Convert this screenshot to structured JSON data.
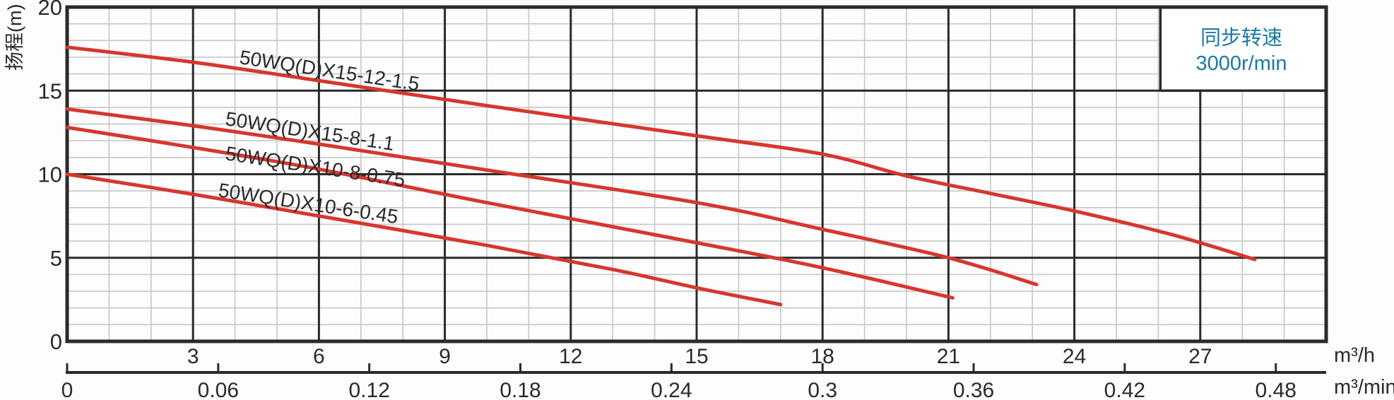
{
  "chart_data": {
    "type": "line",
    "title": "",
    "ylabel": "扬程(m)",
    "note": {
      "line1": "同步转速",
      "line2": "3000r/min"
    },
    "x_primary": {
      "unit": "m³/h",
      "range": [
        0,
        30
      ],
      "minor_step": 1,
      "major_step": 3,
      "tick_values": [
        3,
        6,
        9,
        12,
        15,
        18,
        21,
        24,
        27
      ],
      "tick_labels": [
        "3",
        "6",
        "9",
        "12",
        "15",
        "18",
        "21",
        "24",
        "27"
      ]
    },
    "x_secondary": {
      "unit": "m³/min",
      "range": [
        0,
        0.5
      ],
      "tick_values": [
        0,
        0.06,
        0.12,
        0.18,
        0.24,
        0.3,
        0.36,
        0.42,
        0.48
      ],
      "tick_labels": [
        "0",
        "0.06",
        "0.12",
        "0.18",
        "0.24",
        "0.3",
        "0.36",
        "0.42",
        "0.48"
      ]
    },
    "y": {
      "range": [
        0,
        20
      ],
      "minor_step": 1,
      "major_step": 5,
      "tick_values": [
        0,
        5,
        10,
        15,
        20
      ],
      "tick_labels": [
        "0",
        "5",
        "10",
        "15",
        "20"
      ]
    },
    "grid": {
      "minor": true,
      "major": true
    },
    "legend_position": "top-right-inside",
    "series": [
      {
        "name": "50WQ(D)X15-12-1.5",
        "rated_point": [
          15,
          12
        ],
        "points": [
          [
            0,
            17.6
          ],
          [
            3,
            16.7
          ],
          [
            6,
            15.6
          ],
          [
            10,
            14.1
          ],
          [
            15,
            12.3
          ],
          [
            18,
            11.2
          ],
          [
            20,
            9.9
          ],
          [
            22,
            8.85
          ],
          [
            24,
            7.8
          ],
          [
            26.3,
            6.4
          ],
          [
            28.3,
            4.9
          ]
        ]
      },
      {
        "name": "50WQ(D)X15-8-1.1",
        "rated_point": [
          15,
          8
        ],
        "points": [
          [
            0,
            13.9
          ],
          [
            3,
            12.9
          ],
          [
            6,
            11.8
          ],
          [
            10,
            10.25
          ],
          [
            15,
            8.3
          ],
          [
            18,
            6.7
          ],
          [
            21,
            5.0
          ],
          [
            23.1,
            3.4
          ]
        ]
      },
      {
        "name": "50WQ(D)X10-8-0.75",
        "rated_point": [
          10,
          8
        ],
        "points": [
          [
            0,
            12.8
          ],
          [
            3,
            11.6
          ],
          [
            6,
            10.3
          ],
          [
            10,
            8.3
          ],
          [
            15,
            5.9
          ],
          [
            18,
            4.4
          ],
          [
            21.1,
            2.6
          ]
        ]
      },
      {
        "name": "50WQ(D)X10-6-0.45",
        "rated_point": [
          10,
          6
        ],
        "points": [
          [
            0,
            10.0
          ],
          [
            3,
            8.8
          ],
          [
            6,
            7.5
          ],
          [
            10,
            5.74
          ],
          [
            13,
            4.3
          ],
          [
            15,
            3.2
          ],
          [
            17,
            2.2
          ]
        ]
      }
    ],
    "colors": {
      "curve": "#d6372f",
      "axis": "#2b2a29",
      "grid_minor": "#c7c7c7",
      "note_text": "#1a7aa3",
      "background": "#ffffff"
    }
  }
}
